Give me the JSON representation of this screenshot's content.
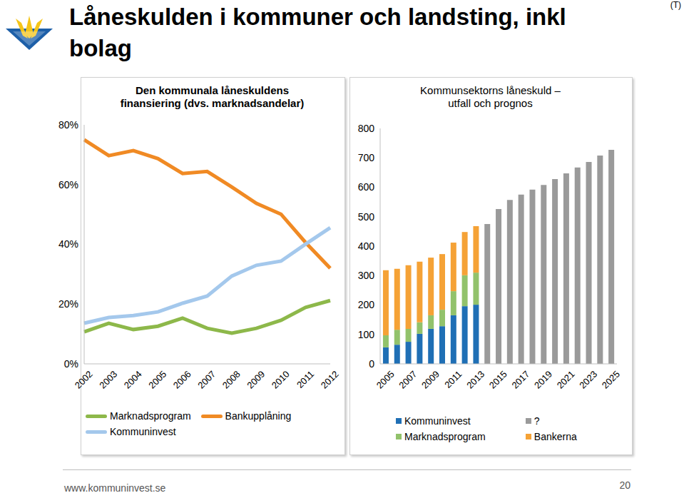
{
  "header": {
    "title": "Låneskulden i kommuner och landsting, inkl bolag",
    "tag": "(T)"
  },
  "chart_data": [
    {
      "type": "line",
      "title": "Den kommunala låneskuldens finansiering (dvs. marknadsandelar)",
      "categories": [
        "2002",
        "2003",
        "2004",
        "2005",
        "2006",
        "2007",
        "2008",
        "2009",
        "2010",
        "2011",
        "2012"
      ],
      "series": [
        {
          "name": "Marknadsprogram",
          "color": "#8db84a",
          "marker": "none",
          "line_style": "solid",
          "values": [
            10.7,
            13.6,
            11.5,
            12.6,
            15.3,
            11.9,
            10.3,
            11.9,
            14.6,
            18.9,
            21.2
          ]
        },
        {
          "name": "Bankupplåning",
          "color": "#f08a24",
          "marker": "none",
          "line_style": "solid",
          "values": [
            75,
            69.7,
            71.4,
            68.7,
            63.7,
            64.4,
            59.2,
            53.7,
            50.1,
            40.6,
            32
          ]
        },
        {
          "name": "Kommuninvest",
          "color": "#a4c8ec",
          "marker": "none",
          "line_style": "solid",
          "values": [
            13.6,
            15.5,
            16.2,
            17.4,
            20.3,
            22.7,
            29.4,
            33,
            34.4,
            40.1,
            45.6
          ]
        }
      ],
      "ylim": [
        0,
        80
      ],
      "yticks": [
        {
          "value": 0,
          "label": "0%"
        },
        {
          "value": 20,
          "label": "20%"
        },
        {
          "value": 40,
          "label": "40%"
        },
        {
          "value": 60,
          "label": "60%"
        },
        {
          "value": 80,
          "label": "80%"
        }
      ],
      "grid": false,
      "legend": "bottom"
    },
    {
      "type": "bar",
      "title": "Kommunsektorns låneskuld – utfall och prognos",
      "stacked": true,
      "categories": [
        "2005",
        null,
        "2007",
        null,
        "2009",
        null,
        "2011",
        null,
        "2013",
        null,
        "2015",
        null,
        "2017",
        null,
        "2019",
        null,
        "2021",
        null,
        "2023",
        null,
        "2025"
      ],
      "series": [
        {
          "name": "Kommuninvest",
          "color": "#1f6fb5",
          "values": [
            56,
            65,
            75,
            102,
            119,
            128,
            165,
            196,
            201,
            null,
            null,
            null,
            null,
            null,
            null,
            null,
            null,
            null,
            null,
            null,
            null
          ]
        },
        {
          "name": "Marknadsprogram",
          "color": "#92c26b",
          "values": [
            41,
            51,
            44,
            39,
            46,
            56,
            82,
            105,
            109,
            null,
            null,
            null,
            null,
            null,
            null,
            null,
            null,
            null,
            null,
            null,
            null
          ]
        },
        {
          "name": "?",
          "color": "#9a9a9a",
          "values": [
            null,
            null,
            null,
            null,
            null,
            null,
            null,
            null,
            null,
            475,
            526,
            557,
            575,
            592,
            608,
            628,
            647,
            667,
            686,
            708,
            727
          ]
        },
        {
          "name": "Bankerna",
          "color": "#f5a236",
          "values": [
            221,
            207,
            216,
            206,
            196,
            189,
            165,
            147,
            158,
            null,
            null,
            null,
            null,
            null,
            null,
            null,
            null,
            null,
            null,
            null,
            null
          ]
        }
      ],
      "ylim": [
        0,
        800
      ],
      "yticks": [
        0,
        100,
        200,
        300,
        400,
        500,
        600,
        700,
        800
      ],
      "grid": false,
      "legend": "bottom"
    }
  ],
  "footer": {
    "url": "www.kommuninvest.se",
    "page": "20"
  }
}
